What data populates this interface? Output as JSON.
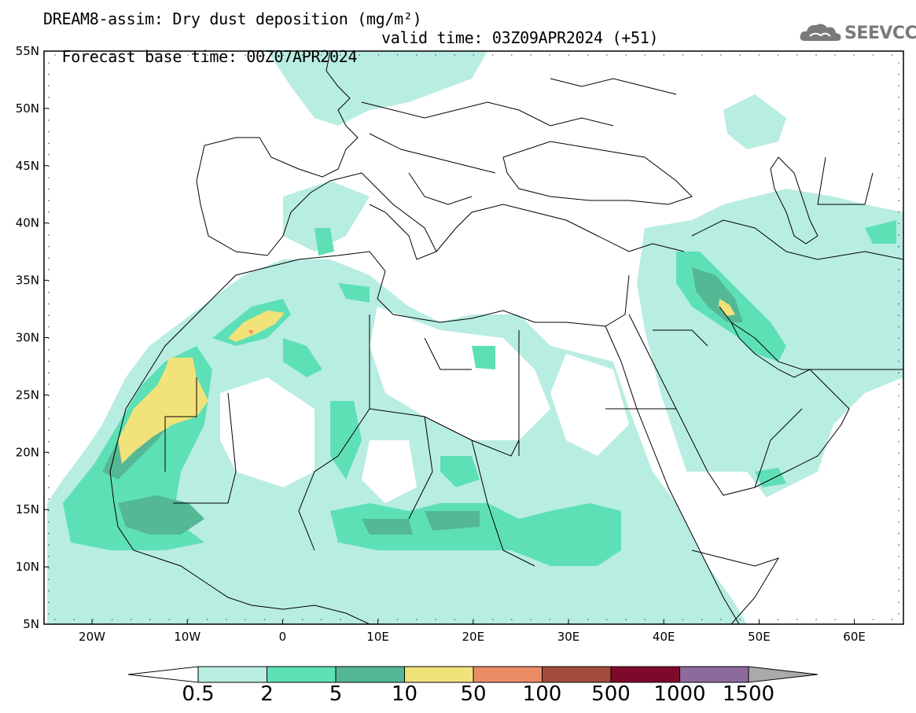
{
  "header": {
    "title": "DREAM8-assim: Dry dust deposition (mg/m²)",
    "base_time": "Forecast base time: 00Z07APR2024",
    "valid_time": "valid time: 03Z09APR2024 (+51)",
    "logo_text": "SEEVCCC"
  },
  "map": {
    "lat_labels": [
      "55N",
      "50N",
      "45N",
      "40N",
      "35N",
      "30N",
      "25N",
      "20N",
      "15N",
      "10N",
      "5N"
    ],
    "lon_labels": [
      "20W",
      "10W",
      "0",
      "10E",
      "20E",
      "30E",
      "40E",
      "50E",
      "60E"
    ]
  },
  "colorbar": {
    "labels": [
      "0.5",
      "2",
      "5",
      "10",
      "50",
      "100",
      "500",
      "1000",
      "1500"
    ],
    "colors": [
      "#b8ede2",
      "#5ee0b6",
      "#54b894",
      "#f2e27a",
      "#eb8c67",
      "#a54b3d",
      "#7e0a2b",
      "#8d6a9e"
    ],
    "under_color": "#ffffff",
    "over_color": "#aaaaaa"
  },
  "icons": {
    "logo": "cloud-icon"
  }
}
